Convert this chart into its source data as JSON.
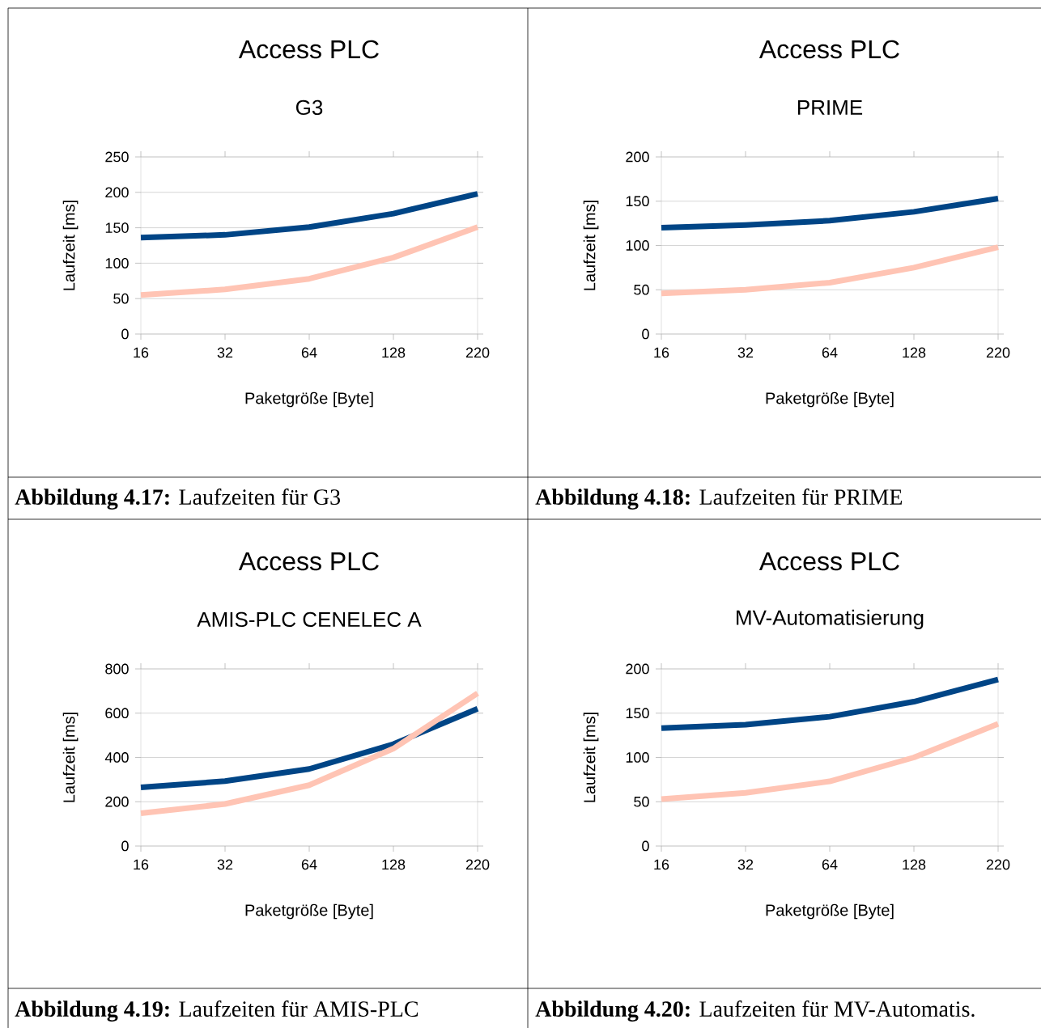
{
  "chart_data": [
    {
      "type": "line",
      "title": "Access PLC",
      "subtitle": "G3",
      "xlabel": "Paketgröße [Byte]",
      "ylabel": "Laufzeit [ms]",
      "categories": [
        "16",
        "32",
        "64",
        "128",
        "220"
      ],
      "series": [
        {
          "color": "#004586",
          "values": [
            136,
            140,
            151,
            170,
            198
          ]
        },
        {
          "color": "#ffc4b4",
          "values": [
            55,
            63,
            78,
            108,
            151
          ]
        }
      ],
      "ylim": [
        0,
        250
      ],
      "yticks": [
        0,
        50,
        100,
        150,
        200,
        250
      ],
      "grid": "y",
      "annotations": [
        "**Abbildung 4.17:** Laufzeiten für G3"
      ]
    },
    {
      "type": "line",
      "title": "Access PLC",
      "subtitle": "PRIME",
      "xlabel": "Paketgröße [Byte]",
      "ylabel": "Laufzeit [ms]",
      "categories": [
        "16",
        "32",
        "64",
        "128",
        "220"
      ],
      "series": [
        {
          "color": "#004586",
          "values": [
            120,
            123,
            128,
            138,
            153
          ]
        },
        {
          "color": "#ffc4b4",
          "values": [
            46,
            50,
            58,
            75,
            98
          ]
        }
      ],
      "ylim": [
        0,
        200
      ],
      "yticks": [
        0,
        50,
        100,
        150,
        200
      ],
      "grid": "y",
      "annotations": [
        "**Abbildung 4.18:** Laufzeiten für PRIME"
      ]
    },
    {
      "type": "line",
      "title": "Access PLC",
      "subtitle": "AMIS-PLC CENELEC A",
      "xlabel": "Paketgröße [Byte]",
      "ylabel": "Laufzeit [ms]",
      "categories": [
        "16",
        "32",
        "64",
        "128",
        "220"
      ],
      "series": [
        {
          "color": "#004586",
          "values": [
            265,
            293,
            348,
            460,
            620
          ]
        },
        {
          "color": "#ffc4b4",
          "values": [
            148,
            190,
            275,
            440,
            690
          ]
        }
      ],
      "ylim": [
        0,
        800
      ],
      "yticks": [
        0,
        200,
        400,
        600,
        800
      ],
      "grid": "y",
      "annotations": [
        "**Abbildung 4.19:** Laufzeiten für AMIS-PLC"
      ]
    },
    {
      "type": "line",
      "title": "Access PLC",
      "subtitle": "MV-Automatisierung",
      "xlabel": "Paketgröße [Byte]",
      "ylabel": "Laufzeit [ms]",
      "categories": [
        "16",
        "32",
        "64",
        "128",
        "220"
      ],
      "series": [
        {
          "color": "#004586",
          "values": [
            133,
            137,
            146,
            163,
            188
          ]
        },
        {
          "color": "#ffc4b4",
          "values": [
            53,
            60,
            73,
            100,
            138
          ]
        }
      ],
      "ylim": [
        0,
        200
      ],
      "yticks": [
        0,
        50,
        100,
        150,
        200
      ],
      "grid": "y",
      "annotations": [
        "**Abbildung 4.20:** Laufzeiten für MV-Automatis."
      ]
    }
  ]
}
